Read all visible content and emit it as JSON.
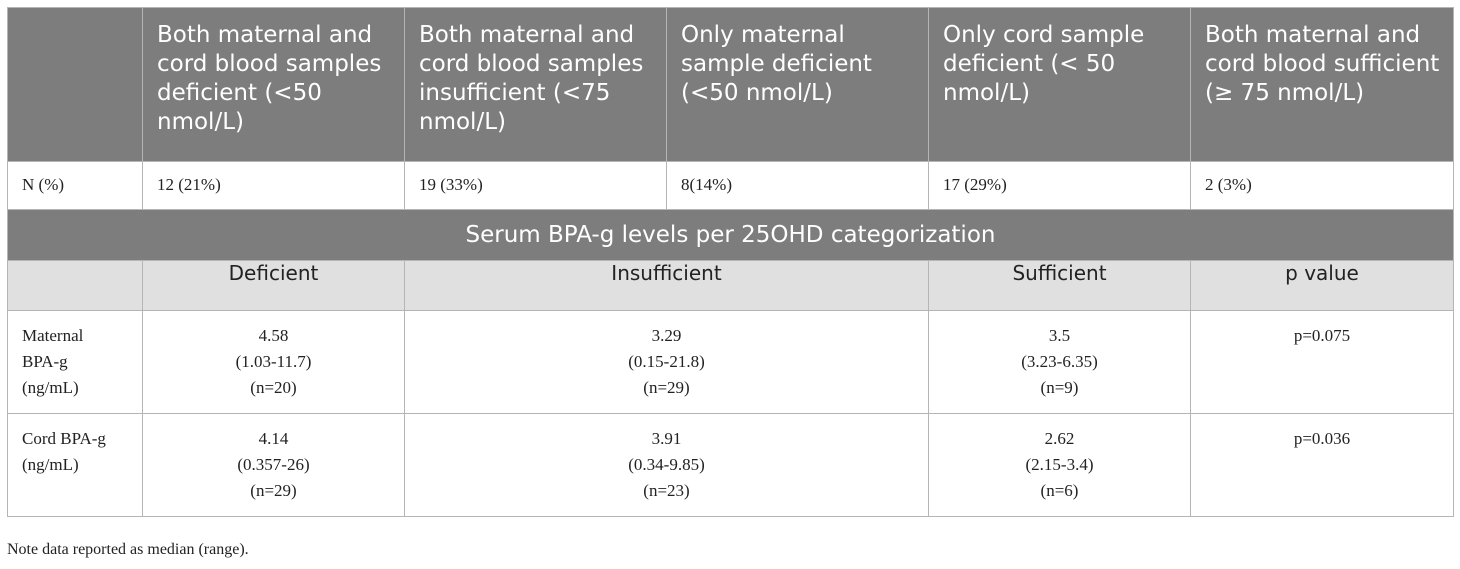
{
  "header": {
    "cols": [
      "",
      "Both maternal and cord blood samples deficient (<50 nmol/L)",
      "Both maternal and cord blood samples insufficient (<75 nmol/L)",
      "Only maternal sample deficient (<50 nmol/L)",
      "Only cord sample deficient (< 50 nmol/L)",
      "Both maternal and cord blood sufficient (≥ 75 nmol/L)"
    ]
  },
  "n_row": {
    "label": "N (%)",
    "values": [
      "12 (21%)",
      "19 (33%)",
      "8(14%)",
      "17 (29%)",
      "2 (3%)"
    ]
  },
  "section_title": "Serum BPA-g levels per 25OHD categorization",
  "sub_header": {
    "cols": [
      "Deficient",
      "Insufficient",
      "Sufficient",
      "p value"
    ]
  },
  "rows": [
    {
      "label_lines": [
        "Maternal",
        "BPA-g",
        "(ng/mL)"
      ],
      "deficient": [
        "4.58",
        "(1.03-11.7)",
        "(n=20)"
      ],
      "insufficient": [
        "3.29",
        "(0.15-21.8)",
        "(n=29)"
      ],
      "sufficient": [
        "3.5",
        "(3.23-6.35)",
        "(n=9)"
      ],
      "p": "p=0.075"
    },
    {
      "label_lines": [
        "Cord BPA-g",
        "(ng/mL)"
      ],
      "deficient": [
        "4.14",
        "(0.357-26)",
        "(n=29)"
      ],
      "insufficient": [
        "3.91",
        "(0.34-9.85)",
        "(n=23)"
      ],
      "sufficient": [
        "2.62",
        "(2.15-3.4)",
        "(n=6)"
      ],
      "p": "p=0.036"
    }
  ],
  "note": "Note data reported as median (range)."
}
